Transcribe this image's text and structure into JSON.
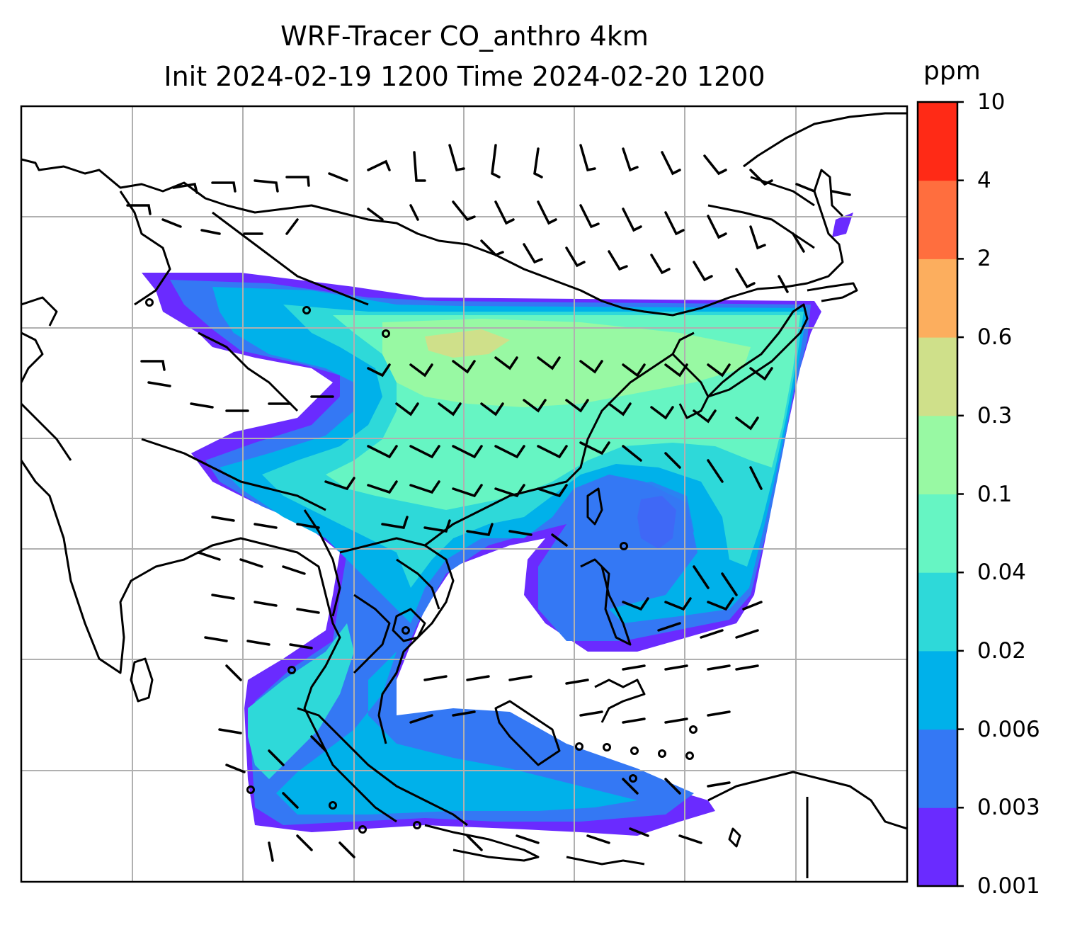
{
  "title": {
    "line1": "WRF-Tracer CO_anthro 4km",
    "line2": "Init 2024-02-19 1200 Time 2024-02-20 1200"
  },
  "colorbar": {
    "unit": "ppm",
    "levels": [
      "0.001",
      "0.003",
      "0.006",
      "0.02",
      "0.04",
      "0.1",
      "0.3",
      "0.6",
      "2",
      "4",
      "10"
    ],
    "colors": [
      "#6a2bff",
      "#3478f4",
      "#00b1ea",
      "#2ed9d9",
      "#66f5c3",
      "#98f9a3",
      "#cfe08a",
      "#fcae5e",
      "#ff6e3e",
      "#ff2a16"
    ]
  },
  "map": {
    "gridlines": true,
    "gridline_color": "#b0b0b0",
    "coastline_color": "#000000",
    "wind_barb_color": "#000000"
  }
}
